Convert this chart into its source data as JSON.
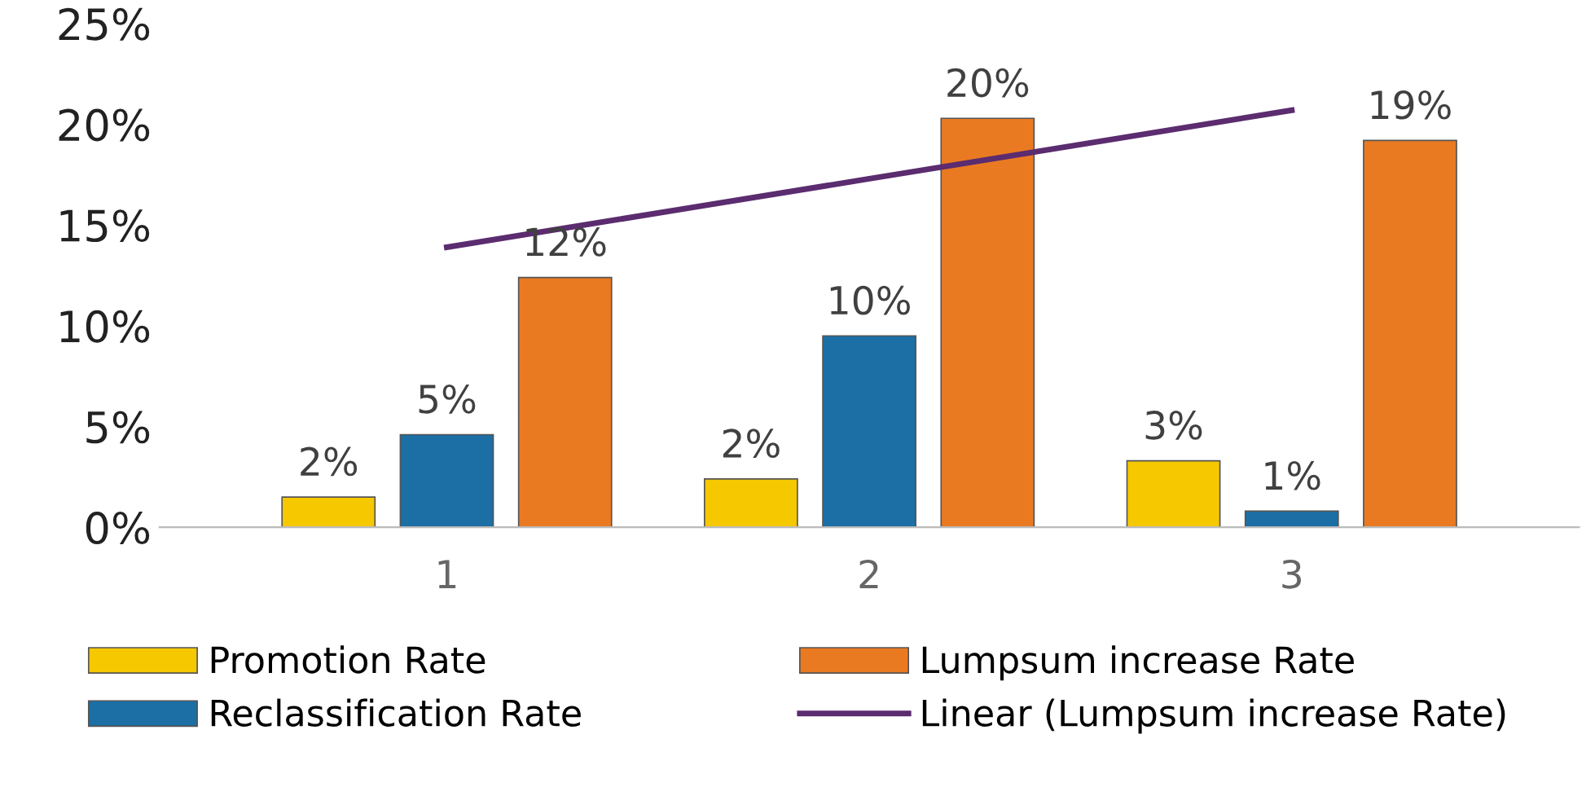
{
  "chart_data": {
    "type": "bar",
    "categories": [
      "1",
      "2",
      "3"
    ],
    "series": [
      {
        "name": "Promotion Rate",
        "color": "#f5c800",
        "values": [
          1.5,
          2.4,
          3.3
        ],
        "value_labels": [
          "2%",
          "2%",
          "3%"
        ]
      },
      {
        "name": "Reclassification Rate",
        "color": "#1b6fa5",
        "values": [
          4.6,
          9.5,
          0.8
        ],
        "value_labels": [
          "5%",
          "10%",
          "1%"
        ]
      },
      {
        "name": "Lumpsum increase Rate",
        "color": "#ea7a22",
        "values": [
          12.4,
          20.3,
          19.2
        ],
        "value_labels": [
          "12%",
          "20%",
          "19%"
        ]
      },
      {
        "name": "Linear (Lumpsum increase Rate)",
        "color": "#5b2c6f",
        "type": "line",
        "values": [
          13.9,
          17.3,
          20.7
        ]
      }
    ],
    "ylim": [
      0,
      25
    ],
    "yticks": [
      {
        "value": 0,
        "label": "0%"
      },
      {
        "value": 5,
        "label": "5%"
      },
      {
        "value": 10,
        "label": "10%"
      },
      {
        "value": 15,
        "label": "15%"
      },
      {
        "value": 20,
        "label": "20%"
      },
      {
        "value": 25,
        "label": "25%"
      }
    ],
    "grid": false,
    "legend": "bottom"
  }
}
